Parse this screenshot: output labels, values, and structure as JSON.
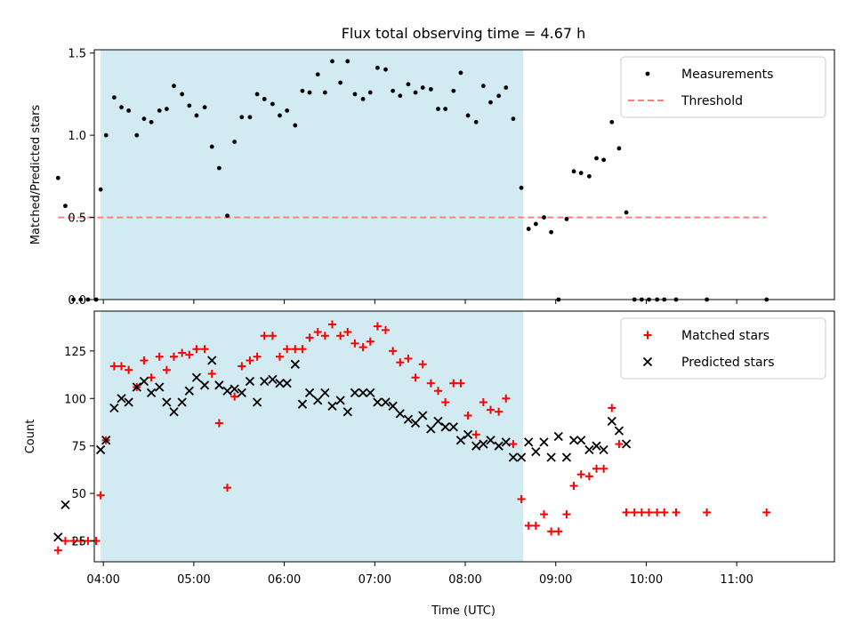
{
  "title": "Flux total observing time = 4.67 h",
  "xlabel": "Time (UTC)",
  "xticks": [
    "04:00",
    "05:00",
    "06:00",
    "07:00",
    "08:00",
    "09:00",
    "10:00",
    "11:00"
  ],
  "colors": {
    "span": "#add8e6",
    "threshold": "#ff7f7f",
    "matched": "#ff0000",
    "predicted": "#000000",
    "measurement": "#000000"
  },
  "chart_data": [
    {
      "type": "scatter",
      "ylabel": "Matched/Predicted stars",
      "ylim": [
        0,
        1.52
      ],
      "yticks": [
        "0.0",
        "0.5",
        "1.0",
        "1.5"
      ],
      "xlim": [
        3.9,
        12.08
      ],
      "shaded_span": [
        3.97,
        8.64
      ],
      "legend_position": "upper right",
      "threshold": {
        "name": "Threshold",
        "value": 0.5,
        "x_range": [
          3.5,
          11.33
        ]
      },
      "series": [
        {
          "name": "Measurements",
          "x": [
            3.5,
            3.58,
            3.67,
            3.75,
            3.83,
            3.92,
            3.97,
            4.03,
            4.12,
            4.2,
            4.28,
            4.37,
            4.45,
            4.53,
            4.62,
            4.7,
            4.78,
            4.87,
            4.95,
            5.03,
            5.12,
            5.2,
            5.28,
            5.37,
            5.45,
            5.53,
            5.62,
            5.7,
            5.78,
            5.87,
            5.95,
            6.03,
            6.12,
            6.2,
            6.28,
            6.37,
            6.45,
            6.53,
            6.62,
            6.7,
            6.78,
            6.87,
            6.95,
            7.03,
            7.12,
            7.2,
            7.28,
            7.37,
            7.45,
            7.53,
            7.62,
            7.7,
            7.78,
            7.87,
            7.95,
            8.03,
            8.12,
            8.2,
            8.28,
            8.37,
            8.45,
            8.53,
            8.62,
            8.7,
            8.78,
            8.87,
            8.95,
            9.03,
            9.12,
            9.2,
            9.28,
            9.37,
            9.45,
            9.53,
            9.62,
            9.7,
            9.78,
            9.87,
            9.95,
            10.03,
            10.12,
            10.2,
            10.33,
            10.67,
            11.33
          ],
          "y": [
            0.74,
            0.57,
            0,
            0,
            0,
            0,
            0.67,
            1.0,
            1.23,
            1.17,
            1.15,
            1.0,
            1.1,
            1.08,
            1.15,
            1.16,
            1.3,
            1.25,
            1.18,
            1.12,
            1.17,
            0.93,
            0.8,
            0.51,
            0.96,
            1.11,
            1.11,
            1.25,
            1.22,
            1.19,
            1.12,
            1.15,
            1.06,
            1.27,
            1.26,
            1.37,
            1.26,
            1.45,
            1.32,
            1.45,
            1.25,
            1.22,
            1.26,
            1.41,
            1.4,
            1.27,
            1.24,
            1.31,
            1.26,
            1.29,
            1.28,
            1.16,
            1.16,
            1.27,
            1.38,
            1.12,
            1.08,
            1.3,
            1.2,
            1.24,
            1.29,
            1.1,
            0.68,
            0.43,
            0.46,
            0.5,
            0.41,
            0,
            0.49,
            0.78,
            0.77,
            0.75,
            0.86,
            0.85,
            1.08,
            0.92,
            0.53,
            0,
            0,
            0,
            0,
            0,
            0,
            0,
            0
          ]
        }
      ]
    },
    {
      "type": "scatter",
      "ylabel": "Count",
      "ylim": [
        14,
        146
      ],
      "yticks": [
        "25",
        "50",
        "75",
        "100",
        "125"
      ],
      "xlim": [
        3.9,
        12.08
      ],
      "shaded_span": [
        3.97,
        8.64
      ],
      "legend_position": "upper right",
      "series": [
        {
          "name": "Matched stars",
          "marker": "+",
          "x": [
            3.5,
            3.58,
            3.67,
            3.75,
            3.83,
            3.92,
            3.97,
            4.03,
            4.12,
            4.2,
            4.28,
            4.37,
            4.45,
            4.53,
            4.62,
            4.7,
            4.78,
            4.87,
            4.95,
            5.03,
            5.12,
            5.2,
            5.28,
            5.37,
            5.45,
            5.53,
            5.62,
            5.7,
            5.78,
            5.87,
            5.95,
            6.03,
            6.12,
            6.2,
            6.28,
            6.37,
            6.45,
            6.53,
            6.62,
            6.7,
            6.78,
            6.87,
            6.95,
            7.03,
            7.12,
            7.2,
            7.28,
            7.37,
            7.45,
            7.53,
            7.62,
            7.7,
            7.78,
            7.87,
            7.95,
            8.03,
            8.12,
            8.2,
            8.28,
            8.37,
            8.45,
            8.53,
            8.62,
            8.7,
            8.78,
            8.87,
            8.95,
            9.03,
            9.12,
            9.2,
            9.28,
            9.37,
            9.45,
            9.53,
            9.62,
            9.7,
            9.78,
            9.87,
            9.95,
            10.03,
            10.12,
            10.2,
            10.33,
            10.67,
            11.33
          ],
          "y": [
            20,
            25,
            25,
            25,
            25,
            25,
            49,
            78,
            117,
            117,
            115,
            106,
            120,
            111,
            122,
            115,
            122,
            124,
            123,
            126,
            126,
            113,
            87,
            53,
            101,
            117,
            120,
            122,
            133,
            133,
            122,
            126,
            126,
            126,
            132,
            135,
            133,
            139,
            133,
            135,
            129,
            127,
            130,
            138,
            136,
            125,
            119,
            121,
            111,
            118,
            108,
            104,
            98,
            108,
            108,
            91,
            81,
            98,
            94,
            93,
            100,
            76,
            47,
            33,
            33,
            39,
            30,
            30,
            39,
            54,
            60,
            59,
            63,
            63,
            95,
            76,
            40,
            40,
            40,
            40,
            40,
            40,
            40,
            40,
            40
          ]
        },
        {
          "name": "Predicted stars",
          "marker": "x",
          "x": [
            3.5,
            3.58,
            3.97,
            4.03,
            4.12,
            4.2,
            4.28,
            4.37,
            4.45,
            4.53,
            4.62,
            4.7,
            4.78,
            4.87,
            4.95,
            5.03,
            5.12,
            5.2,
            5.28,
            5.37,
            5.45,
            5.53,
            5.62,
            5.7,
            5.78,
            5.87,
            5.95,
            6.03,
            6.12,
            6.2,
            6.28,
            6.37,
            6.45,
            6.53,
            6.62,
            6.7,
            6.78,
            6.87,
            6.95,
            7.03,
            7.12,
            7.2,
            7.28,
            7.37,
            7.45,
            7.53,
            7.62,
            7.7,
            7.78,
            7.87,
            7.95,
            8.03,
            8.12,
            8.2,
            8.28,
            8.37,
            8.45,
            8.53,
            8.62,
            8.7,
            8.78,
            8.87,
            8.95,
            9.03,
            9.12,
            9.2,
            9.28,
            9.37,
            9.45,
            9.53,
            9.62,
            9.7,
            9.78
          ],
          "y": [
            27,
            44,
            73,
            78,
            95,
            100,
            98,
            106,
            109,
            103,
            106,
            98,
            93,
            98,
            104,
            111,
            107,
            120,
            107,
            104,
            105,
            103,
            109,
            98,
            109,
            110,
            108,
            108,
            118,
            97,
            103,
            99,
            103,
            96,
            99,
            93,
            103,
            103,
            103,
            98,
            98,
            96,
            92,
            89,
            87,
            91,
            84,
            88,
            85,
            85,
            78,
            81,
            75,
            76,
            78,
            75,
            77,
            69,
            69,
            77,
            72,
            77,
            69,
            80,
            69,
            78,
            78,
            73,
            75,
            73,
            88,
            83,
            76
          ]
        }
      ]
    }
  ],
  "legend_top": [
    "Measurements",
    "Threshold"
  ],
  "legend_bottom": [
    "Matched stars",
    "Predicted stars"
  ]
}
